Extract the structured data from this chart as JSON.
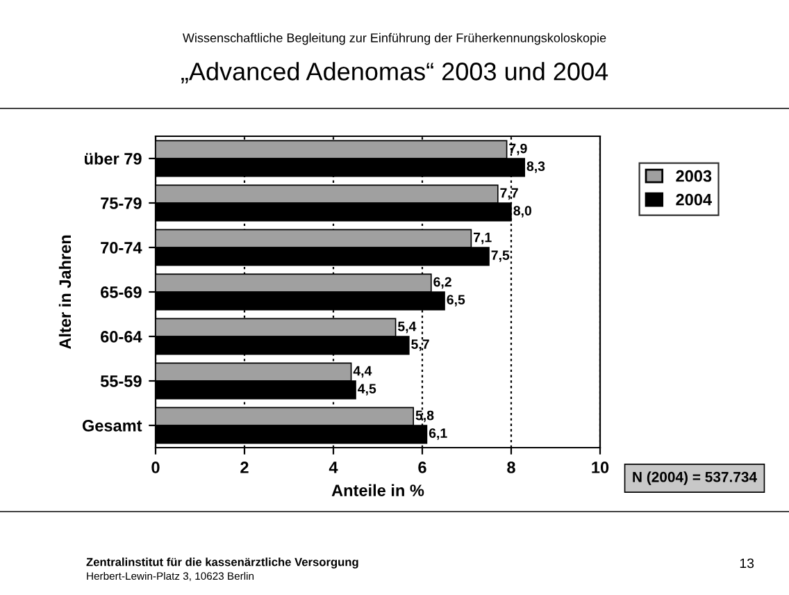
{
  "chart_data": {
    "type": "bar",
    "orientation": "horizontal",
    "subtitle": "Wissenschaftliche Begleitung zur Einführung der Früherkennungskoloskopie",
    "title": "„Advanced Adenomas“ 2003 und 2004",
    "ylabel": "Alter in Jahren",
    "xlabel": "Anteile in %",
    "categories": [
      "über 79",
      "75-79",
      "70-74",
      "65-69",
      "60-64",
      "55-59",
      "Gesamt"
    ],
    "series": [
      {
        "name": "2003",
        "color": "#a0a0a0",
        "values": [
          7.9,
          7.7,
          7.1,
          6.2,
          5.4,
          4.4,
          5.8
        ],
        "value_labels": [
          "7,9",
          "7,7",
          "7,1",
          "6,2",
          "5,4",
          "4,4",
          "5,8"
        ]
      },
      {
        "name": "2004",
        "color": "#000000",
        "values": [
          8.3,
          8.0,
          7.5,
          6.5,
          5.7,
          4.5,
          6.1
        ],
        "value_labels": [
          "8,3",
          "8,0",
          "7,5",
          "6,5",
          "5,7",
          "4,5",
          "6,1"
        ]
      }
    ],
    "xlim": [
      0,
      10
    ],
    "xticks": [
      0,
      2,
      4,
      6,
      8,
      10
    ],
    "grid": "x",
    "legend": "right",
    "annotations": [
      "N (2004) = 537.734",
      "Zentralinstitut für die kassenärztliche Versorgung",
      "Herbert-Lewin-Platz 3, 10623 Berlin",
      "13"
    ]
  }
}
